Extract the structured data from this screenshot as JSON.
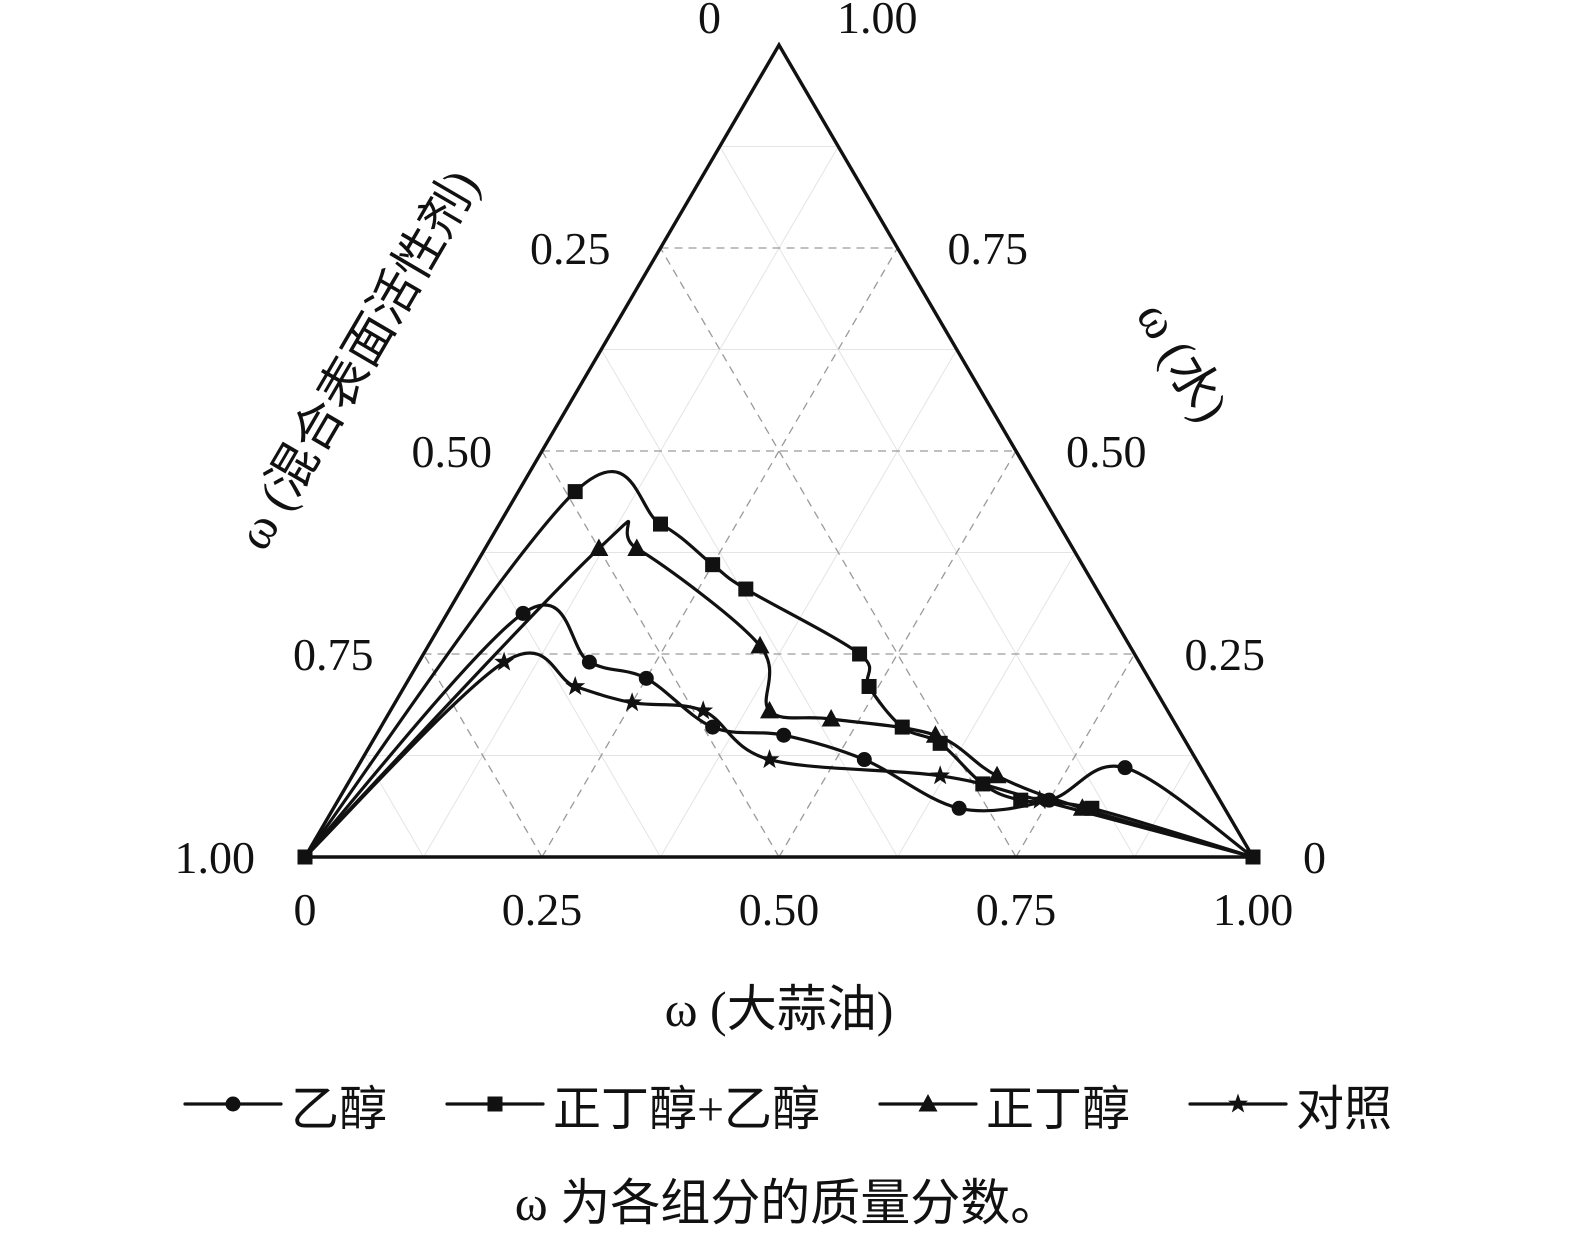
{
  "chart_data": {
    "type": "line",
    "subtype": "ternary-phase-diagram",
    "coordinates": "each point is [oil, surfactant, water] mass fractions summing to 1",
    "axes": {
      "bottom": {
        "label": "ω (大蒜油)",
        "ticks": [
          "0",
          "0.25",
          "0.50",
          "0.75",
          "1.00"
        ],
        "range": [
          0,
          1
        ]
      },
      "left": {
        "label": "ω (混合表面活性剂)",
        "ticks": [
          "0",
          "0.25",
          "0.50",
          "0.75",
          "1.00"
        ],
        "range": [
          0,
          1
        ]
      },
      "right": {
        "label": "ω (水)",
        "ticks": [
          "1.00",
          "0.75",
          "0.50",
          "0.25",
          "0"
        ],
        "range": [
          0,
          1
        ]
      }
    },
    "grid": {
      "major_step": 0.25,
      "major_style": "dashed",
      "minor_step": 0.125,
      "minor_style": "solid"
    },
    "legend_position": "bottom",
    "series": [
      {
        "name": "乙醇",
        "marker": "circle",
        "points": [
          [
            0,
            1,
            0
          ],
          [
            0.08,
            0.62,
            0.3
          ],
          [
            0.18,
            0.58,
            0.24
          ],
          [
            0.25,
            0.53,
            0.22
          ],
          [
            0.35,
            0.49,
            0.16
          ],
          [
            0.43,
            0.42,
            0.15
          ],
          [
            0.53,
            0.35,
            0.12
          ],
          [
            0.66,
            0.28,
            0.06
          ],
          [
            0.75,
            0.18,
            0.07
          ],
          [
            0.81,
            0.08,
            0.11
          ],
          [
            1,
            0,
            0
          ]
        ]
      },
      {
        "name": "正丁醇+乙醇",
        "marker": "square",
        "points": [
          [
            0,
            1,
            0
          ],
          [
            0.06,
            0.49,
            0.45
          ],
          [
            0.17,
            0.42,
            0.41
          ],
          [
            0.25,
            0.39,
            0.36
          ],
          [
            0.3,
            0.37,
            0.33
          ],
          [
            0.46,
            0.29,
            0.25
          ],
          [
            0.49,
            0.3,
            0.21
          ],
          [
            0.55,
            0.29,
            0.16
          ],
          [
            0.6,
            0.26,
            0.14
          ],
          [
            0.67,
            0.24,
            0.09
          ],
          [
            0.72,
            0.21,
            0.07
          ],
          [
            0.8,
            0.14,
            0.06
          ],
          [
            1,
            0,
            0
          ]
        ]
      },
      {
        "name": "正丁醇",
        "marker": "triangle",
        "points": [
          [
            0,
            1,
            0
          ],
          [
            0.12,
            0.5,
            0.38
          ],
          [
            0.16,
            0.46,
            0.38
          ],
          [
            0.35,
            0.39,
            0.26
          ],
          [
            0.4,
            0.42,
            0.18
          ],
          [
            0.47,
            0.36,
            0.17
          ],
          [
            0.59,
            0.26,
            0.15
          ],
          [
            0.68,
            0.22,
            0.1
          ],
          [
            0.79,
            0.15,
            0.06
          ],
          [
            1,
            0,
            0
          ]
        ]
      },
      {
        "name": "对照",
        "marker": "star",
        "points": [
          [
            0,
            1,
            0
          ],
          [
            0.09,
            0.67,
            0.24
          ],
          [
            0.18,
            0.61,
            0.21
          ],
          [
            0.25,
            0.56,
            0.19
          ],
          [
            0.33,
            0.49,
            0.18
          ],
          [
            0.43,
            0.45,
            0.12
          ],
          [
            0.62,
            0.28,
            0.1
          ],
          [
            0.74,
            0.19,
            0.07
          ],
          [
            1,
            0,
            0
          ]
        ]
      }
    ]
  },
  "caption": "ω 为各组分的质量分数。",
  "colors": {
    "line": "#111111",
    "grid_major": "#9a9a9a",
    "grid_minor": "#e4e4e4",
    "background": "#ffffff"
  }
}
